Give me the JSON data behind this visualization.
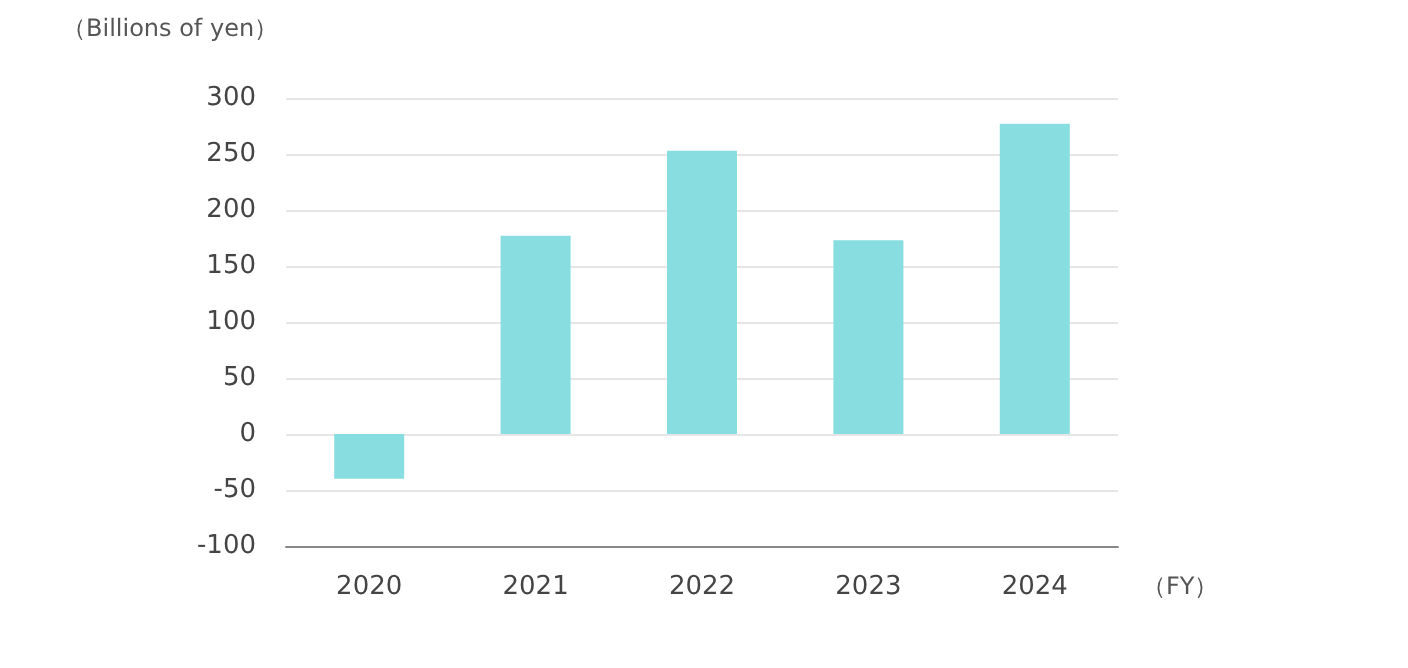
{
  "chart_data": {
    "type": "bar",
    "ylabel": "（Billions of yen）",
    "xlabel": "（FY）",
    "categories": [
      "2020",
      "2021",
      "2022",
      "2023",
      "2024"
    ],
    "values": [
      -40,
      177,
      253,
      173,
      277
    ],
    "color": "#88dde0",
    "ylim": [
      -100,
      300
    ],
    "yticks": [
      -100,
      -50,
      0,
      50,
      100,
      150,
      200,
      250,
      300
    ],
    "grid": "y"
  }
}
